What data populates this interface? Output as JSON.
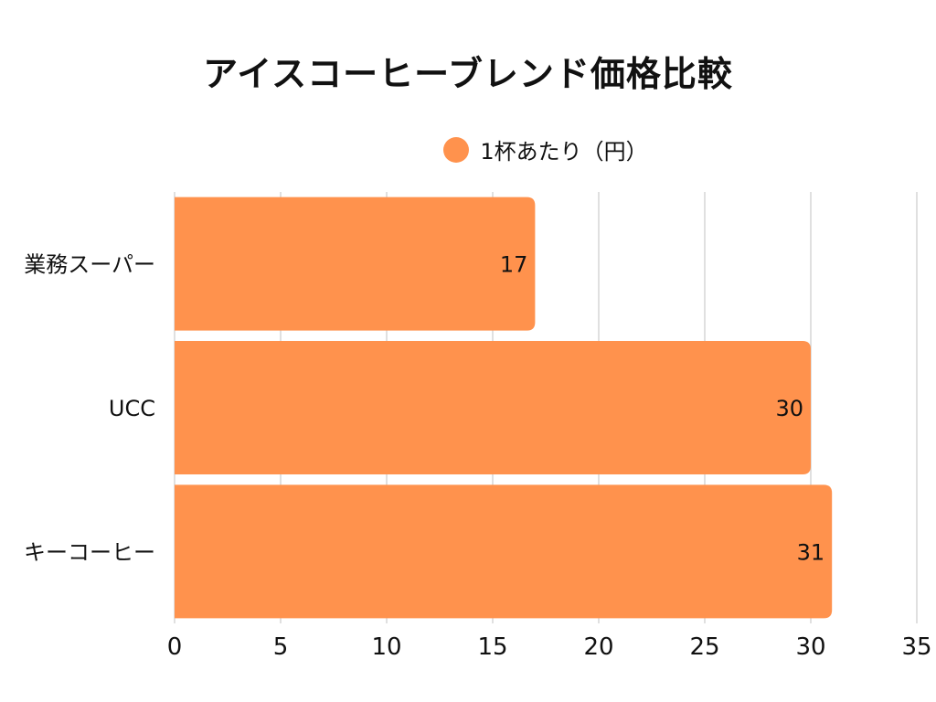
{
  "chart_data": {
    "type": "bar",
    "orientation": "horizontal",
    "title": "アイスコーヒーブレンド価格比較",
    "categories": [
      "業務スーパー",
      "UCC",
      "キーコーヒー"
    ],
    "series": [
      {
        "name": "1杯あたり（円）",
        "values": [
          17,
          30,
          31
        ],
        "color": "#ff924d"
      }
    ],
    "xlim": [
      0,
      35
    ],
    "xticks": [
      0,
      5,
      10,
      15,
      20,
      25,
      30,
      35
    ],
    "grid": true,
    "legend": "top",
    "data_labels": true
  }
}
